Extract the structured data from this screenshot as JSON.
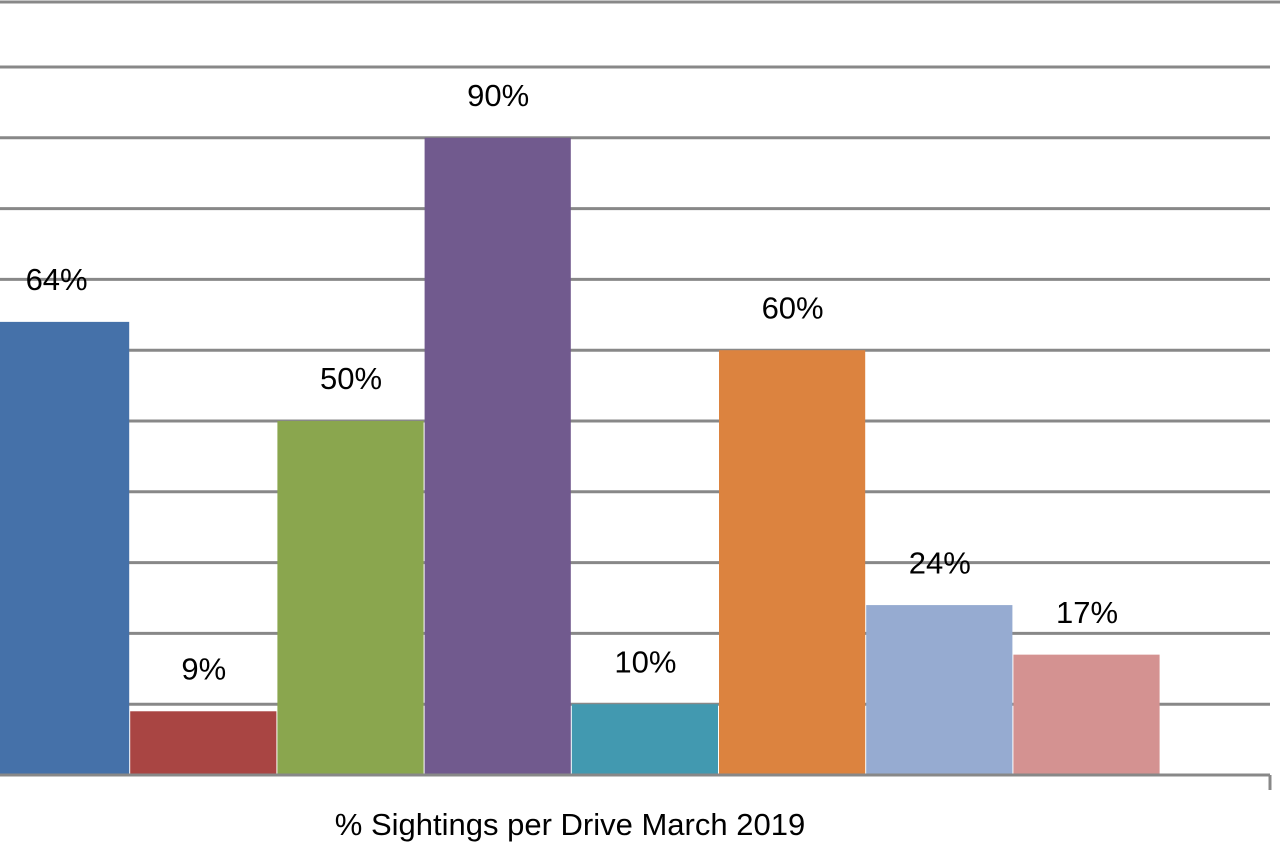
{
  "chart_data": {
    "type": "bar",
    "xlabel": "% Sightings per Drive March 2019",
    "values": [
      64,
      9,
      50,
      90,
      10,
      60,
      24,
      17
    ],
    "value_labels": [
      "64%",
      "9%",
      "50%",
      "90%",
      "10%",
      "60%",
      "24%",
      "17%"
    ],
    "colors": [
      "#4571a9",
      "#a94543",
      "#8aa64e",
      "#715a8e",
      "#4299b0",
      "#dc833f",
      "#96abd1",
      "#d49291"
    ],
    "ylim": [
      0,
      100
    ],
    "yticks": [
      0,
      10,
      20,
      30,
      40,
      50,
      60,
      70,
      80,
      90,
      100
    ],
    "grid": true
  }
}
